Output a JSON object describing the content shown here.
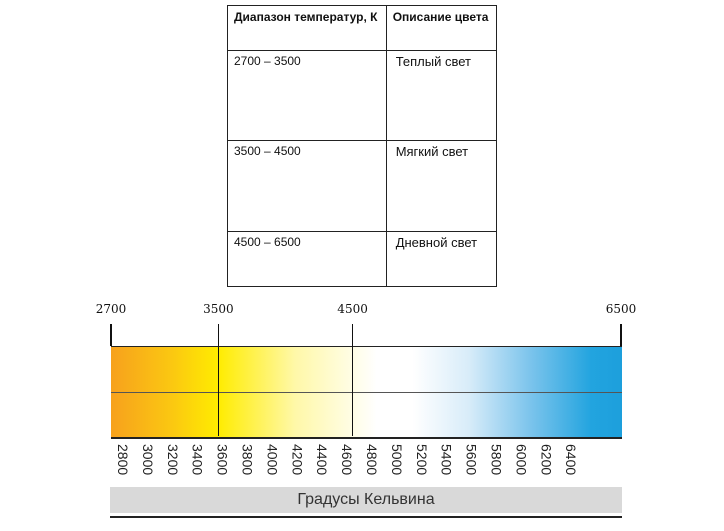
{
  "table": {
    "headers": [
      "Диапазон температур, К",
      "Описание цвета"
    ],
    "rows": [
      {
        "range": "2700 – 3500",
        "description": "Теплый  свет"
      },
      {
        "range": "3500 – 4500",
        "description": "Мягкий свет"
      },
      {
        "range": "4500 – 6500",
        "description": "Дневной свет"
      }
    ]
  },
  "scale": {
    "markers": [
      "2700",
      "3500",
      "4500",
      "6500"
    ],
    "ticks": [
      "2800",
      "3000",
      "3200",
      "3400",
      "3600",
      "3800",
      "4000",
      "4200",
      "4400",
      "4600",
      "4800",
      "5000",
      "5200",
      "5400",
      "5600",
      "5800",
      "6000",
      "6200",
      "6400"
    ],
    "caption": "Градусы Кельвина",
    "colors": {
      "warm": "#f7a11d",
      "yellow": "#ffec00",
      "neutral": "#ffffff",
      "cool": "#1d9fdc"
    }
  }
}
